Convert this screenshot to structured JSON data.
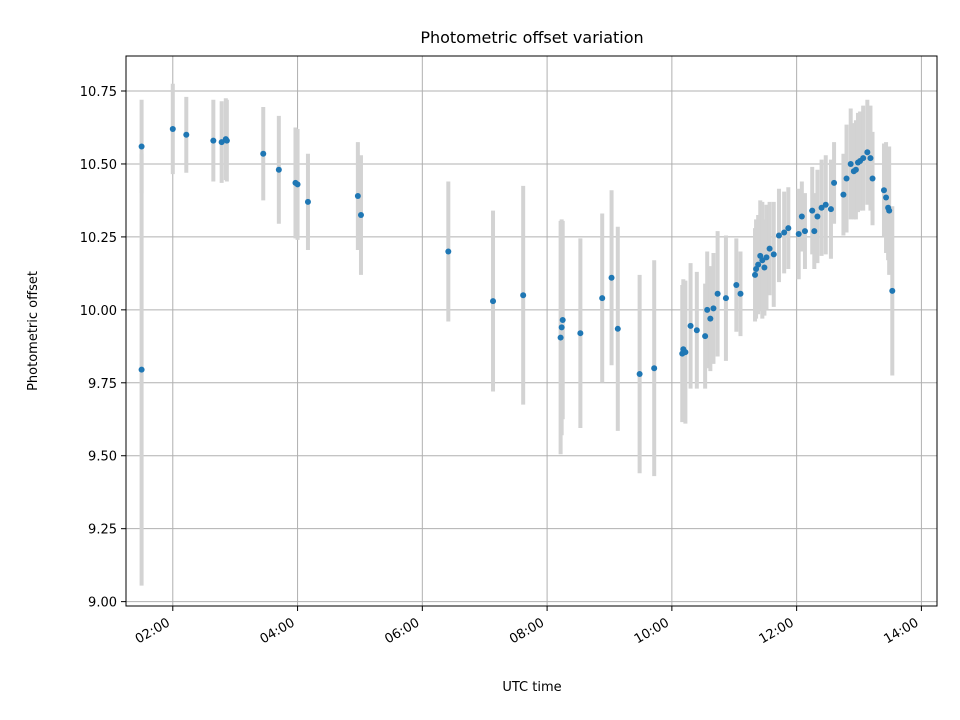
{
  "chart_data": {
    "type": "scatter",
    "title": "Photometric offset variation",
    "xlabel": "UTC time",
    "ylabel": "Photometric offset",
    "xlim": [
      "01:15",
      "14:15"
    ],
    "ylim": [
      8.985,
      10.87
    ],
    "grid": true,
    "legend": "none",
    "x_ticks": [
      "02:00",
      "04:00",
      "06:00",
      "08:00",
      "10:00",
      "12:00",
      "14:00"
    ],
    "y_ticks": [
      "9.00",
      "9.25",
      "9.50",
      "9.75",
      "10.00",
      "10.25",
      "10.50",
      "10.75"
    ],
    "colors": {
      "point": "#1f77b4",
      "errorbar": "#d3d3d3",
      "grid": "#b0b0b0"
    },
    "series": [
      {
        "x": [
          "01:30",
          "01:30",
          "02:00",
          "02:13",
          "02:39",
          "02:47",
          "02:51",
          "02:52",
          "03:27",
          "03:42",
          "03:58",
          "04:00",
          "04:10",
          "04:58",
          "05:01",
          "06:25",
          "07:08",
          "07:37",
          "08:13",
          "08:14",
          "08:15",
          "08:32",
          "08:53",
          "09:02",
          "09:08",
          "09:29",
          "09:43",
          "10:10",
          "10:11",
          "10:13",
          "10:18",
          "10:24",
          "10:32",
          "10:34",
          "10:37",
          "10:40",
          "10:44",
          "10:52",
          "11:02",
          "11:06",
          "11:20",
          "11:21",
          "11:23",
          "11:25",
          "11:27",
          "11:29",
          "11:31",
          "11:34",
          "11:38",
          "11:43",
          "11:48",
          "11:52",
          "12:02",
          "12:05",
          "12:08",
          "12:15",
          "12:17",
          "12:20",
          "12:24",
          "12:28",
          "12:33",
          "12:36",
          "12:45",
          "12:48",
          "12:52",
          "12:55",
          "12:57",
          "12:59",
          "13:01",
          "13:04",
          "13:08",
          "13:11",
          "13:13",
          "13:24",
          "13:26",
          "13:28",
          "13:29",
          "13:32"
        ],
        "y": [
          10.56,
          9.795,
          10.62,
          10.6,
          10.58,
          10.575,
          10.585,
          10.58,
          10.535,
          10.48,
          10.435,
          10.43,
          10.37,
          10.39,
          10.325,
          10.2,
          10.03,
          10.05,
          9.905,
          9.94,
          9.965,
          9.92,
          10.04,
          10.11,
          9.935,
          9.78,
          9.8,
          9.85,
          9.865,
          9.855,
          9.945,
          9.93,
          9.91,
          10.0,
          9.97,
          10.005,
          10.055,
          10.04,
          10.085,
          10.055,
          10.12,
          10.14,
          10.155,
          10.185,
          10.17,
          10.145,
          10.18,
          10.21,
          10.19,
          10.255,
          10.265,
          10.28,
          10.26,
          10.32,
          10.27,
          10.34,
          10.27,
          10.32,
          10.35,
          10.36,
          10.345,
          10.435,
          10.395,
          10.45,
          10.5,
          10.475,
          10.48,
          10.505,
          10.51,
          10.52,
          10.54,
          10.52,
          10.45,
          10.41,
          10.385,
          10.35,
          10.34,
          10.065
        ],
        "yerr": [
          0.16,
          0.74,
          0.155,
          0.13,
          0.14,
          0.14,
          0.14,
          0.14,
          0.16,
          0.185,
          0.19,
          0.19,
          0.165,
          0.185,
          0.205,
          0.24,
          0.31,
          0.375,
          0.4,
          0.37,
          0.34,
          0.325,
          0.29,
          0.3,
          0.35,
          0.34,
          0.37,
          0.235,
          0.24,
          0.245,
          0.215,
          0.2,
          0.18,
          0.2,
          0.18,
          0.19,
          0.215,
          0.215,
          0.16,
          0.145,
          0.16,
          0.17,
          0.17,
          0.19,
          0.2,
          0.165,
          0.18,
          0.16,
          0.18,
          0.16,
          0.14,
          0.14,
          0.155,
          0.12,
          0.13,
          0.15,
          0.13,
          0.16,
          0.165,
          0.17,
          0.17,
          0.14,
          0.14,
          0.185,
          0.19,
          0.165,
          0.17,
          0.17,
          0.17,
          0.18,
          0.18,
          0.18,
          0.16,
          0.16,
          0.19,
          0.18,
          0.22,
          0.29
        ]
      }
    ]
  }
}
